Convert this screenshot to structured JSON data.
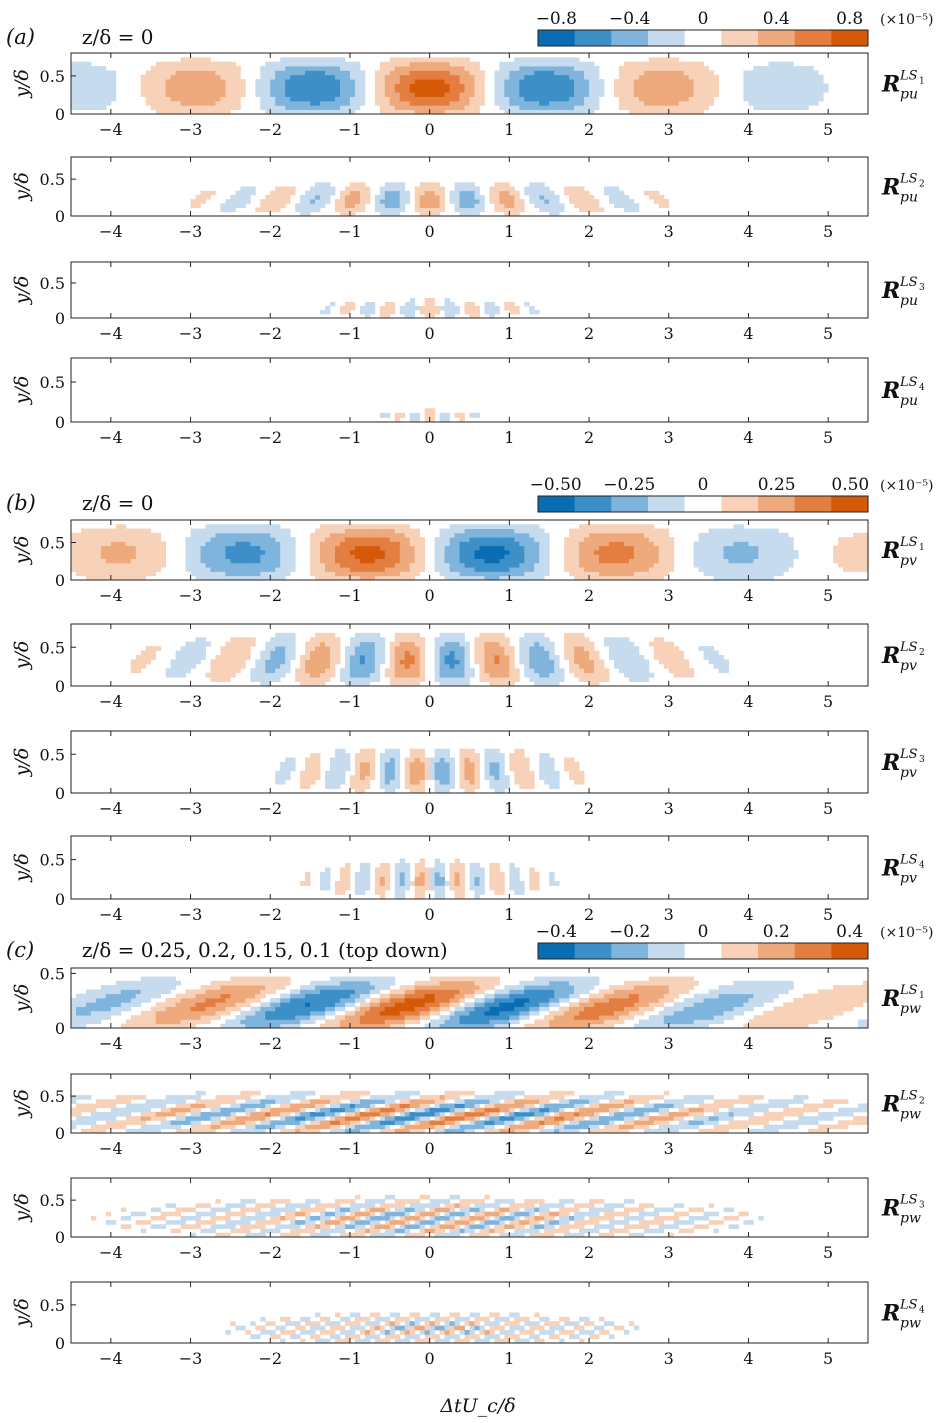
{
  "figure": {
    "xlabel": "ΔtU_c/δ",
    "ylabel": "y/δ",
    "x_ticks": [
      -4,
      -3,
      -2,
      -1,
      0,
      1,
      2,
      3,
      4,
      5
    ],
    "xlim": [
      -4.5,
      5.5
    ],
    "colormap": [
      "#0a6db3",
      "#3d8fc8",
      "#7fb4dc",
      "#c6dcee",
      "#ffffff",
      "#f7d2b8",
      "#eea97c",
      "#e47e40",
      "#d45a08"
    ]
  },
  "chart_data": [
    {
      "panel_label": "(a)",
      "condition": "z/δ = 0",
      "type": "heatmap",
      "colorbar": {
        "ticks": [
          "−0.8",
          "−0.4",
          "0",
          "0.4",
          "0.8"
        ],
        "values": [
          -0.8,
          -0.4,
          0,
          0.4,
          0.8
        ],
        "range": [
          -0.9,
          0.9
        ],
        "unit": "(×10⁻⁵)"
      },
      "quantity": "pu",
      "rows": [
        {
          "name": "R_pu^LS1",
          "ylim": [
            0,
            0.8
          ],
          "yticks": [
            0,
            0.5
          ],
          "amp": 0.9,
          "lambda": 3.0,
          "lobes": 6,
          "hmax": 0.78,
          "tilt": 0,
          "shape": "flat"
        },
        {
          "name": "R_pu^LS2",
          "ylim": [
            0,
            0.8
          ],
          "yticks": [
            0,
            0.5
          ],
          "amp": 0.55,
          "lambda": 1.05,
          "lobes": 14,
          "hmax": 0.5,
          "tilt": 0.4,
          "shape": "fan"
        },
        {
          "name": "R_pu^LS3",
          "ylim": [
            0,
            0.8
          ],
          "yticks": [
            0,
            0.5
          ],
          "amp": 0.4,
          "lambda": 0.55,
          "lobes": 14,
          "hmax": 0.3,
          "tilt": 0.3,
          "shape": "fan"
        },
        {
          "name": "R_pu^LS4",
          "ylim": [
            0,
            0.8
          ],
          "yticks": [
            0,
            0.5
          ],
          "amp": 0.3,
          "lambda": 0.4,
          "lobes": 10,
          "hmax": 0.18,
          "tilt": 0.2,
          "shape": "fan"
        }
      ]
    },
    {
      "panel_label": "(b)",
      "condition": "z/δ = 0",
      "type": "heatmap",
      "colorbar": {
        "ticks": [
          "−0.50",
          "−0.25",
          "0",
          "0.25",
          "0.50"
        ],
        "values": [
          -0.5,
          -0.25,
          0,
          0.25,
          0.5
        ],
        "range": [
          -0.56,
          0.56
        ],
        "unit": "(×10⁻⁵)"
      },
      "quantity": "pv",
      "rows": [
        {
          "name": "R_pv^LS1",
          "ylim": [
            0,
            0.8
          ],
          "yticks": [
            0,
            0.5
          ],
          "amp": 0.56,
          "lambda": 3.2,
          "lobes": 7,
          "hmax": 0.8,
          "tilt": 0,
          "shape": "flat",
          "odd": true
        },
        {
          "name": "R_pv^LS2",
          "ylim": [
            0,
            0.8
          ],
          "yticks": [
            0,
            0.5
          ],
          "amp": 0.45,
          "lambda": 1.2,
          "lobes": 14,
          "hmax": 0.75,
          "tilt": 0.35,
          "shape": "fan",
          "odd": true
        },
        {
          "name": "R_pv^LS3",
          "ylim": [
            0,
            0.8
          ],
          "yticks": [
            0,
            0.5
          ],
          "amp": 0.35,
          "lambda": 0.7,
          "lobes": 14,
          "hmax": 0.65,
          "tilt": 0.25,
          "shape": "fan",
          "odd": true
        },
        {
          "name": "R_pv^LS4",
          "ylim": [
            0,
            0.8
          ],
          "yticks": [
            0,
            0.5
          ],
          "amp": 0.3,
          "lambda": 0.5,
          "lobes": 16,
          "hmax": 0.55,
          "tilt": 0.2,
          "shape": "fan",
          "odd": true
        }
      ]
    },
    {
      "panel_label": "(c)",
      "condition": "z/δ = 0.25, 0.2, 0.15, 0.1 (top down)",
      "type": "heatmap",
      "colorbar": {
        "ticks": [
          "−0.4",
          "−0.2",
          "0",
          "0.2",
          "0.4"
        ],
        "values": [
          -0.4,
          -0.2,
          0,
          0.2,
          0.4
        ],
        "range": [
          -0.45,
          0.45
        ],
        "unit": "(×10⁻⁵)"
      },
      "quantity": "pw",
      "rows": [
        {
          "name": "R_pw^LS1",
          "ylim": [
            0,
            0.55
          ],
          "yticks": [
            0,
            0.5
          ],
          "amp": 0.45,
          "lambda": 2.6,
          "lobes": 7,
          "hmax": 0.5,
          "tilt": 1.0,
          "shape": "slant"
        },
        {
          "name": "R_pw^LS2",
          "ylim": [
            0,
            0.8
          ],
          "yticks": [
            0,
            0.5
          ],
          "amp": 0.35,
          "lambda": 1.3,
          "lobes": 14,
          "hmax": 0.6,
          "tilt": 1.3,
          "shape": "slant"
        },
        {
          "name": "R_pw^LS3",
          "ylim": [
            0,
            0.8
          ],
          "yticks": [
            0,
            0.5
          ],
          "amp": 0.25,
          "lambda": 0.8,
          "lobes": 16,
          "hmax": 0.6,
          "tilt": 1.1,
          "shape": "slant"
        },
        {
          "name": "R_pw^LS4",
          "ylim": [
            0,
            0.8
          ],
          "yticks": [
            0,
            0.5
          ],
          "amp": 0.2,
          "lambda": 0.5,
          "lobes": 18,
          "hmax": 0.45,
          "tilt": 0.9,
          "shape": "slant"
        }
      ]
    }
  ],
  "row_label_parts": {
    "base": "R",
    "sup_prefix": "LS",
    "sub_index": [
      "1",
      "2",
      "3",
      "4"
    ]
  }
}
